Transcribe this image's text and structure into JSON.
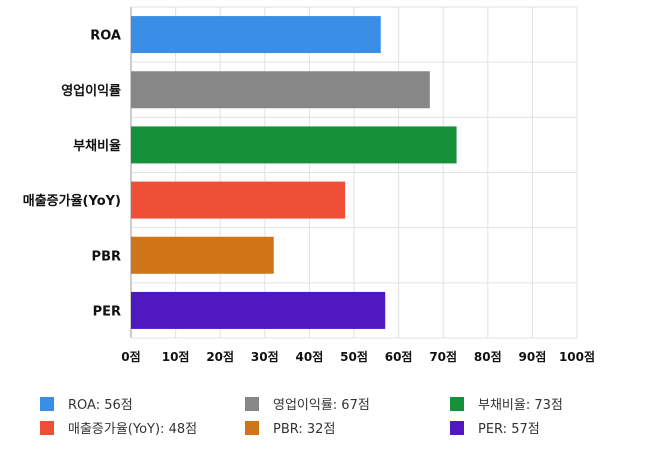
{
  "chart_data": {
    "type": "bar",
    "orientation": "horizontal",
    "categories": [
      "ROA",
      "영업이익률",
      "부채비율",
      "매출증가율(YoY)",
      "PBR",
      "PER"
    ],
    "values": [
      56,
      67,
      73,
      48,
      32,
      57
    ],
    "colors": [
      "#3a8ee6",
      "#878787",
      "#16903a",
      "#ef4f37",
      "#cf7418",
      "#4f19bf"
    ],
    "xlim": [
      0,
      100
    ],
    "xticks": [
      0,
      10,
      20,
      30,
      40,
      50,
      60,
      70,
      80,
      90,
      100
    ],
    "tick_suffix": "점",
    "tick_labels": [
      "0점",
      "10점",
      "20점",
      "30점",
      "40점",
      "50점",
      "60점",
      "70점",
      "80점",
      "90점",
      "100점"
    ],
    "grid": true,
    "legend_position": "bottom"
  },
  "legend": [
    {
      "label": "ROA: 56점",
      "color": "#3a8ee6"
    },
    {
      "label": "영업이익률: 67점",
      "color": "#878787"
    },
    {
      "label": "부채비율: 73점",
      "color": "#16903a"
    },
    {
      "label": "매출증가율(YoY): 48점",
      "color": "#ef4f37"
    },
    {
      "label": "PBR: 32점",
      "color": "#cf7418"
    },
    {
      "label": "PER: 57점",
      "color": "#4f19bf"
    }
  ]
}
